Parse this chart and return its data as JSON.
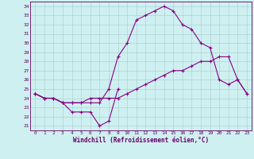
{
  "xlabel": "Windchill (Refroidissement éolien,°C)",
  "x": [
    0,
    1,
    2,
    3,
    4,
    5,
    6,
    7,
    8,
    9,
    10,
    11,
    12,
    13,
    14,
    15,
    16,
    17,
    18,
    19,
    20,
    21,
    22,
    23
  ],
  "line1_x": [
    0,
    1,
    2,
    3,
    4,
    5,
    6,
    7,
    8,
    9
  ],
  "line1_y": [
    24.5,
    24.0,
    24.0,
    23.5,
    22.5,
    22.5,
    22.5,
    21.0,
    21.5,
    25.0
  ],
  "line2": [
    24.5,
    24.0,
    24.0,
    23.5,
    23.5,
    23.5,
    23.5,
    23.5,
    25.0,
    28.5,
    30.0,
    32.5,
    33.0,
    33.5,
    34.0,
    33.5,
    32.0,
    31.5,
    30.0,
    29.5,
    26.0,
    25.5,
    26.0,
    24.5
  ],
  "line3_x": [
    0,
    1,
    2,
    3,
    4,
    5,
    6,
    7,
    8,
    9,
    10,
    11,
    12,
    13,
    14,
    15,
    16,
    17,
    18,
    19,
    20,
    21,
    22,
    23
  ],
  "line3_y": [
    24.5,
    24.0,
    24.0,
    23.5,
    23.5,
    23.5,
    24.0,
    24.0,
    24.0,
    24.0,
    24.5,
    25.0,
    25.5,
    26.0,
    26.5,
    27.0,
    27.0,
    27.5,
    28.0,
    28.0,
    28.5,
    28.5,
    26.0,
    24.5
  ],
  "line_color": "#880088",
  "bg_color": "#cff0f0",
  "grid_color": "#aacccc",
  "ylim": [
    21,
    34
  ],
  "yticks": [
    21,
    22,
    23,
    24,
    25,
    26,
    27,
    28,
    29,
    30,
    31,
    32,
    33,
    34
  ],
  "xticks": [
    0,
    1,
    2,
    3,
    4,
    5,
    6,
    7,
    8,
    9,
    10,
    11,
    12,
    13,
    14,
    15,
    16,
    17,
    18,
    19,
    20,
    21,
    22,
    23
  ]
}
